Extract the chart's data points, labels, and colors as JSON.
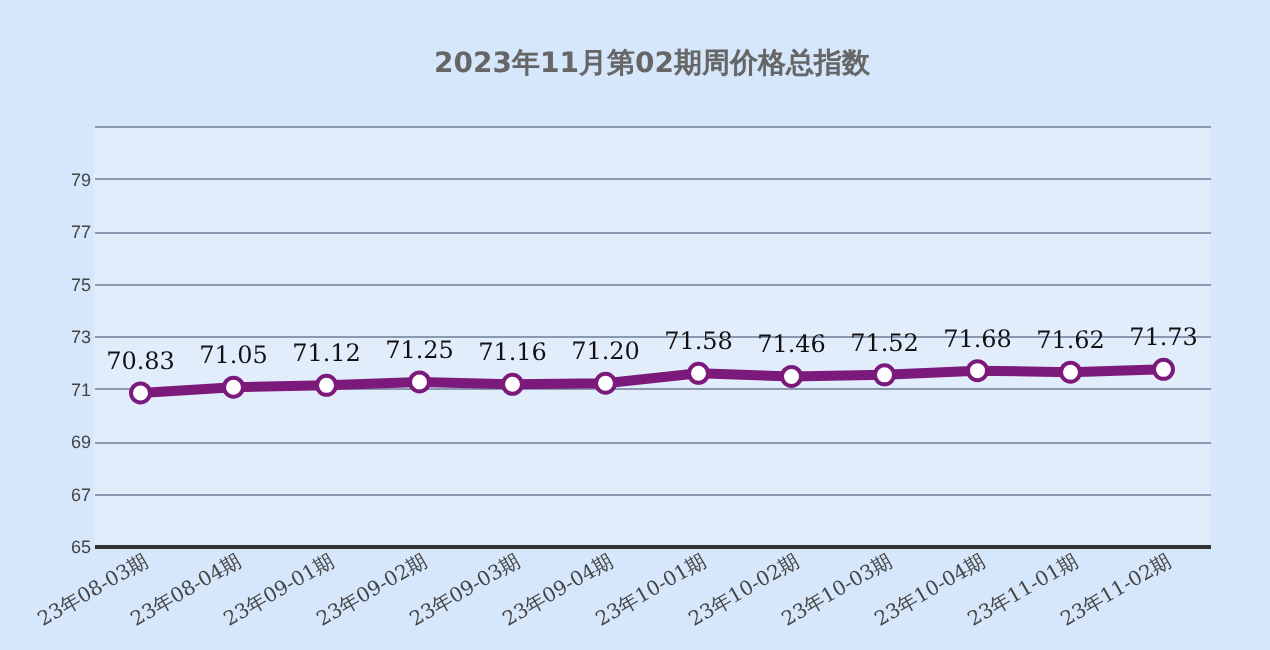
{
  "chart_data": {
    "type": "line",
    "title": "2023年11月第02期周价格总指数",
    "categories": [
      "23年08-03期",
      "23年08-04期",
      "23年09-01期",
      "23年09-02期",
      "23年09-03期",
      "23年09-04期",
      "23年10-01期",
      "23年10-02期",
      "23年10-03期",
      "23年10-04期",
      "23年11-01期",
      "23年11-02期"
    ],
    "series": [
      {
        "color": "#7b1a7b",
        "values": [
          70.83,
          71.05,
          71.12,
          71.25,
          71.16,
          71.2,
          71.58,
          71.46,
          71.52,
          71.68,
          71.62,
          71.73
        ],
        "value_labels": [
          "70.83",
          "71.05",
          "71.12",
          "71.25",
          "71.16",
          "71.20",
          "71.58",
          "71.46",
          "71.52",
          "71.68",
          "71.62",
          "71.73"
        ]
      }
    ],
    "ylim": [
      65,
      81
    ],
    "yticks": [
      65,
      67,
      69,
      71,
      73,
      75,
      77,
      79,
      {
        "value": 81,
        "label": null
      }
    ],
    "grid": "y",
    "marker": "circle",
    "line_style": "solid"
  }
}
